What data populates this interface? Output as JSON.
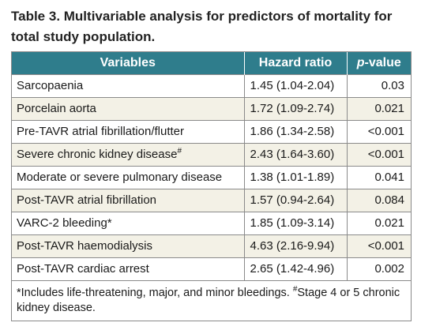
{
  "title": "Table 3. Multivariable analysis for predictors of mortality for total study population.",
  "table": {
    "headers": {
      "variables": "Variables",
      "hazard_ratio": "Hazard ratio",
      "p_value_p": "p",
      "p_value_rest": "-value"
    },
    "rows": [
      {
        "variable": "Sarcopaenia",
        "sup": "",
        "hr": "1.45 (1.04-2.04)",
        "p": "0.03"
      },
      {
        "variable": "Porcelain aorta",
        "sup": "",
        "hr": "1.72 (1.09-2.74)",
        "p": "0.021"
      },
      {
        "variable": "Pre-TAVR atrial fibrillation/flutter",
        "sup": "",
        "hr": "1.86 (1.34-2.58)",
        "p": "<0.001"
      },
      {
        "variable": "Severe chronic kidney disease",
        "sup": "#",
        "hr": "2.43 (1.64-3.60)",
        "p": "<0.001"
      },
      {
        "variable": "Moderate or severe pulmonary disease",
        "sup": "",
        "hr": "1.38 (1.01-1.89)",
        "p": "0.041"
      },
      {
        "variable": "Post-TAVR atrial fibrillation",
        "sup": "",
        "hr": "1.57 (0.94-2.64)",
        "p": "0.084"
      },
      {
        "variable": "VARC-2 bleeding*",
        "sup": "",
        "hr": "1.85 (1.09-3.14)",
        "p": "0.021"
      },
      {
        "variable": "Post-TAVR haemodialysis",
        "sup": "",
        "hr": "4.63 (2.16-9.94)",
        "p": "<0.001"
      },
      {
        "variable": "Post-TAVR cardiac arrest",
        "sup": "",
        "hr": "2.65 (1.42-4.96)",
        "p": "0.002"
      }
    ],
    "footnote_part1": "*Includes life-threatening, major, and minor bleedings. ",
    "footnote_sup": "#",
    "footnote_part2": "Stage 4 or 5 chronic kidney disease."
  },
  "colors": {
    "header_bg": "#2f7d8c",
    "header_text": "#ffffff",
    "shaded_row_bg": "#f3f1e6",
    "border": "#8a8a8a"
  }
}
